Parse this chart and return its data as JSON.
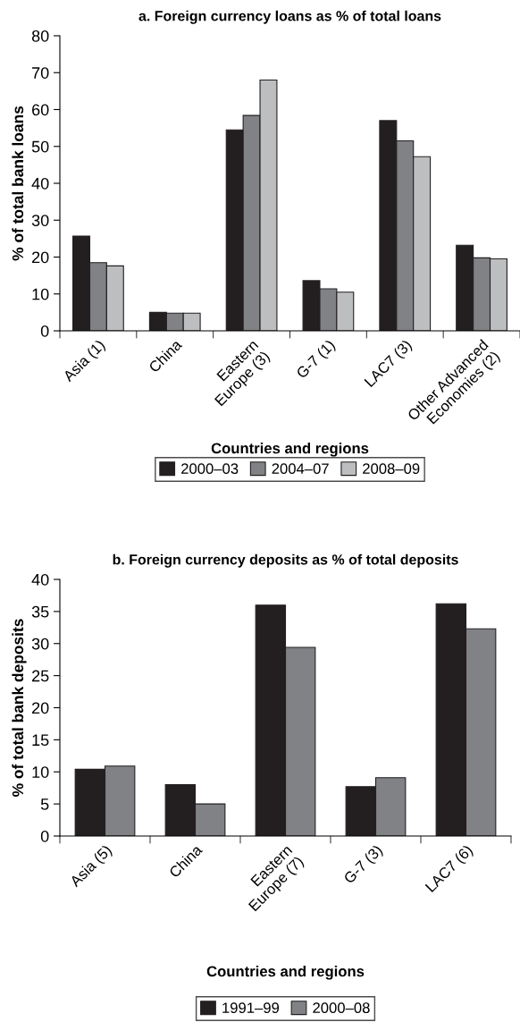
{
  "chart_data": [
    {
      "type": "bar",
      "title": "a. Foreign currency loans as % of total loans",
      "xlabel": "Countries and regions",
      "ylabel": "% of total bank loans",
      "categories": [
        "Asia (1)",
        "China",
        "Eastern Europe (3)",
        "G-7 (1)",
        "LAC7 (3)",
        "Other Advanced Economies (2)"
      ],
      "series": [
        {
          "name": "2000–03",
          "color": "#231f20",
          "values": [
            25.7,
            5.0,
            54.5,
            13.6,
            57.0,
            23.2
          ]
        },
        {
          "name": "2004–07",
          "color": "#808285",
          "values": [
            18.5,
            4.8,
            58.4,
            11.4,
            51.5,
            19.8
          ]
        },
        {
          "name": "2008–09",
          "color": "#bcbec0",
          "values": [
            17.6,
            4.8,
            68.0,
            10.5,
            47.2,
            19.5
          ]
        }
      ],
      "ylim": [
        0,
        80
      ],
      "yticks": [
        0,
        10,
        20,
        30,
        40,
        50,
        60,
        70,
        80
      ],
      "grid": false,
      "legend": "bottom"
    },
    {
      "type": "bar",
      "title": "b. Foreign currency deposits as % of total deposits",
      "xlabel": "Countries and regions",
      "ylabel": "% of total bank deposits",
      "categories": [
        "Asia (5)",
        "China",
        "Eastern Europe (7)",
        "G-7 (3)",
        "LAC7 (6)"
      ],
      "series": [
        {
          "name": "1991–99",
          "color": "#231f20",
          "values": [
            10.4,
            8.0,
            36.0,
            7.7,
            36.2
          ]
        },
        {
          "name": "2000–08",
          "color": "#808285",
          "values": [
            10.9,
            5.0,
            29.4,
            9.1,
            32.3
          ]
        }
      ],
      "ylim": [
        0,
        40
      ],
      "yticks": [
        0,
        5,
        10,
        15,
        20,
        25,
        30,
        35,
        40
      ],
      "grid": false,
      "legend": "bottom"
    }
  ]
}
